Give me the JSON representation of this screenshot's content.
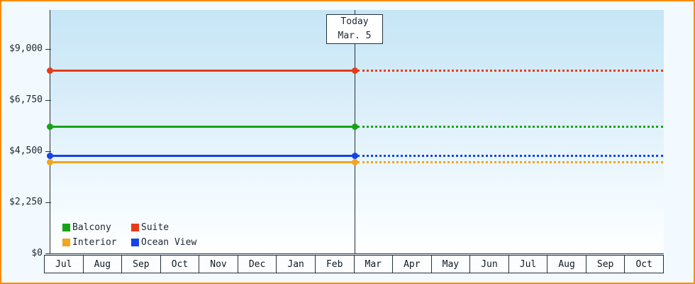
{
  "chart_data": {
    "type": "line",
    "title": "",
    "frame_border_color": "#ff8c00",
    "y_axis": {
      "ticks": [
        {
          "label": "$0",
          "value": 0
        },
        {
          "label": "$2,250",
          "value": 2250
        },
        {
          "label": "$4,500",
          "value": 4500
        },
        {
          "label": "$6,750",
          "value": 6750
        },
        {
          "label": "$9,000",
          "value": 9000
        }
      ],
      "range": [
        0,
        9000
      ]
    },
    "x_axis": {
      "months": [
        "Jul",
        "Aug",
        "Sep",
        "Oct",
        "Nov",
        "Dec",
        "Jan",
        "Feb",
        "Mar",
        "Apr",
        "May",
        "Jun",
        "Jul",
        "Aug",
        "Sep",
        "Oct"
      ]
    },
    "today_marker": {
      "line1": "Today",
      "line2": "Mar. 5"
    },
    "series": [
      {
        "name": "Suite",
        "color": "#e63c19",
        "value": 8050,
        "past_style": "solid",
        "future_style": "dotted"
      },
      {
        "name": "Balcony",
        "color": "#17a317",
        "value": 5600,
        "past_style": "solid",
        "future_style": "dotted"
      },
      {
        "name": "Ocean View",
        "color": "#1543e8",
        "value": 4300,
        "past_style": "solid",
        "future_style": "dotted"
      },
      {
        "name": "Interior",
        "color": "#f2a51f",
        "value": 4030,
        "past_style": "solid",
        "future_style": "dotted"
      }
    ],
    "legend": [
      {
        "name": "Balcony",
        "color": "#17a317"
      },
      {
        "name": "Suite",
        "color": "#e63c19"
      },
      {
        "name": "Interior",
        "color": "#f2a51f"
      },
      {
        "name": "Ocean View",
        "color": "#1543e8"
      }
    ]
  }
}
